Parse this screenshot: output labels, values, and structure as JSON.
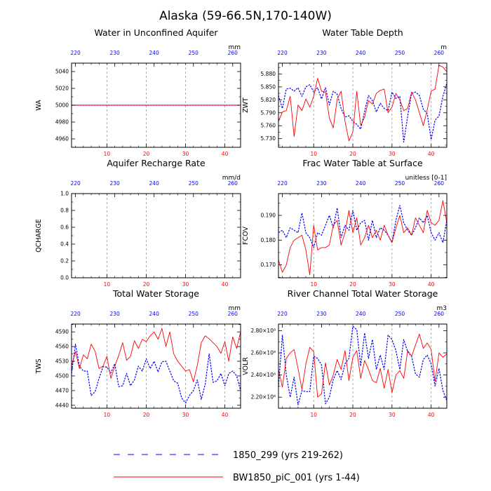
{
  "figure_title": "Alaska (59-66.5N,170-140W)",
  "legend": [
    {
      "label": "1850_299 (yrs 219-262)",
      "color": "#0000ff",
      "style": "dashed"
    },
    {
      "label": "BW1850_piC_001 (yrs 1-44)",
      "color": "#ff0000",
      "style": "solid"
    }
  ],
  "colors": {
    "blue": "#0000ff",
    "red": "#ff0000",
    "grid": "#999999"
  },
  "chart_data": [
    {
      "type": "line",
      "title": "Water in Unconfined Aquifer",
      "ylabel": "WA",
      "units": "mm",
      "xlim_bottom": [
        1,
        44
      ],
      "xticks_bottom": [
        10,
        20,
        30,
        40
      ],
      "xlim_top": [
        219,
        262
      ],
      "xticks_top": [
        220,
        230,
        240,
        250,
        260
      ],
      "ylim": [
        4950,
        5050
      ],
      "yticks": [
        4960,
        4980,
        5000,
        5020,
        5040
      ],
      "ytick_labels": [
        "4960",
        "4980",
        "5000",
        "5020",
        "5040"
      ],
      "series": [
        {
          "name": "1850_299 (yrs 219-262)",
          "values": [
            5000,
            5000,
            5000,
            5000,
            5000,
            5000,
            5000,
            5000,
            5000,
            5000,
            5000,
            5000,
            5000,
            5000,
            5000,
            5000,
            5000,
            5000,
            5000,
            5000,
            5000,
            5000,
            5000,
            5000,
            5000,
            5000,
            5000,
            5000,
            5000,
            5000,
            5000,
            5000,
            5000,
            5000,
            5000,
            5000,
            5000,
            5000,
            5000,
            5000,
            5000,
            5000,
            5000,
            5000
          ]
        },
        {
          "name": "BW1850_piC_001 (yrs 1-44)",
          "values": [
            5000,
            5000,
            5000,
            5000,
            5000,
            5000,
            5000,
            5000,
            5000,
            5000,
            5000,
            5000,
            5000,
            5000,
            5000,
            5000,
            5000,
            5000,
            5000,
            5000,
            5000,
            5000,
            5000,
            5000,
            5000,
            5000,
            5000,
            5000,
            5000,
            5000,
            5000,
            5000,
            5000,
            5000,
            5000,
            5000,
            5000,
            5000,
            5000,
            5000,
            5000,
            5000,
            5000,
            5000
          ]
        }
      ]
    },
    {
      "type": "line",
      "title": "Water Table Depth",
      "ylabel": "ZWT",
      "units": "m",
      "xlim_bottom": [
        1,
        44
      ],
      "xticks_bottom": [
        10,
        20,
        30,
        40
      ],
      "xlim_top": [
        219,
        262
      ],
      "xticks_top": [
        220,
        230,
        240,
        250,
        260
      ],
      "ylim": [
        5.71,
        5.905
      ],
      "yticks": [
        5.73,
        5.76,
        5.79,
        5.82,
        5.85,
        5.88
      ],
      "ytick_labels": [
        "5.730",
        "5.760",
        "5.790",
        "5.820",
        "5.850",
        "5.880"
      ],
      "series": [
        {
          "name": "1850_299 (yrs 219-262)",
          "values": [
            5.83,
            5.8,
            5.845,
            5.847,
            5.84,
            5.848,
            5.828,
            5.85,
            5.855,
            5.838,
            5.848,
            5.822,
            5.848,
            5.808,
            5.84,
            5.833,
            5.8,
            5.78,
            5.783,
            5.77,
            5.763,
            5.752,
            5.793,
            5.83,
            5.818,
            5.792,
            5.812,
            5.8,
            5.795,
            5.838,
            5.823,
            5.828,
            5.722,
            5.782,
            5.835,
            5.838,
            5.83,
            5.798,
            5.788,
            5.728,
            5.773,
            5.782,
            5.828,
            5.858
          ]
        },
        {
          "name": "BW1850_piC_001 (yrs 1-44)",
          "values": [
            5.77,
            5.792,
            5.795,
            5.828,
            5.735,
            5.808,
            5.795,
            5.822,
            5.803,
            5.828,
            5.87,
            5.84,
            5.838,
            5.778,
            5.755,
            5.822,
            5.84,
            5.77,
            5.725,
            5.745,
            5.84,
            5.76,
            5.78,
            5.818,
            5.81,
            5.835,
            5.842,
            5.845,
            5.79,
            5.803,
            5.835,
            5.82,
            5.795,
            5.8,
            5.838,
            5.82,
            5.79,
            5.76,
            5.797,
            5.84,
            5.845,
            5.9,
            5.896,
            5.885
          ]
        }
      ]
    },
    {
      "type": "line",
      "title": "Aquifer Recharge Rate",
      "ylabel": "QCHARGE",
      "units": "mm/d",
      "xlim_bottom": [
        1,
        44
      ],
      "xticks_bottom": [
        10,
        20,
        30,
        40
      ],
      "xlim_top": [
        219,
        262
      ],
      "xticks_top": [
        220,
        230,
        240,
        250,
        260
      ],
      "ylim": [
        0,
        1
      ],
      "yticks": [
        0,
        0.2,
        0.4,
        0.6,
        0.8,
        1.0
      ],
      "ytick_labels": [
        "0.0",
        "0.2",
        "0.4",
        "0.6",
        "0.8",
        "1.0"
      ],
      "series": []
    },
    {
      "type": "line",
      "title": "Frac Water Table at Surface",
      "ylabel": "FCOV",
      "units": "unitless [0-1]",
      "xlim_bottom": [
        1,
        44
      ],
      "xticks_bottom": [
        10,
        20,
        30,
        40
      ],
      "xlim_top": [
        219,
        262
      ],
      "xticks_top": [
        220,
        230,
        240,
        250,
        260
      ],
      "ylim": [
        0.1648,
        0.1988
      ],
      "yticks": [
        0.17,
        0.18,
        0.19
      ],
      "ytick_labels": [
        "0.170",
        "0.180",
        "0.190"
      ],
      "series": [
        {
          "name": "1850_299 (yrs 219-262)",
          "values": [
            0.183,
            0.184,
            0.181,
            0.185,
            0.184,
            0.183,
            0.191,
            0.183,
            0.181,
            0.177,
            0.183,
            0.182,
            0.186,
            0.19,
            0.185,
            0.193,
            0.181,
            0.186,
            0.184,
            0.192,
            0.184,
            0.187,
            0.188,
            0.18,
            0.188,
            0.181,
            0.185,
            0.184,
            0.182,
            0.179,
            0.188,
            0.194,
            0.187,
            0.184,
            0.182,
            0.185,
            0.189,
            0.187,
            0.19,
            0.183,
            0.18,
            0.183,
            0.179,
            0.188
          ]
        },
        {
          "name": "BW1850_piC_001 (yrs 1-44)",
          "values": [
            0.172,
            0.167,
            0.17,
            0.177,
            0.18,
            0.181,
            0.182,
            0.176,
            0.166,
            0.186,
            0.176,
            0.177,
            0.177,
            0.178,
            0.186,
            0.188,
            0.178,
            0.183,
            0.192,
            0.183,
            0.189,
            0.178,
            0.181,
            0.186,
            0.181,
            0.184,
            0.18,
            0.186,
            0.182,
            0.179,
            0.185,
            0.19,
            0.183,
            0.185,
            0.182,
            0.189,
            0.186,
            0.183,
            0.192,
            0.187,
            0.186,
            0.188,
            0.196,
            0.187
          ]
        }
      ]
    },
    {
      "type": "line",
      "title": "Total Water Storage",
      "ylabel": "TWS",
      "units": "mm",
      "xlim_bottom": [
        1,
        44
      ],
      "xticks_bottom": [
        10,
        20,
        30,
        40
      ],
      "xlim_top": [
        219,
        262
      ],
      "xticks_top": [
        220,
        230,
        240,
        250,
        260
      ],
      "ylim": [
        4434,
        4606
      ],
      "yticks": [
        4440,
        4470,
        4500,
        4530,
        4560,
        4590
      ],
      "ytick_labels": [
        "4440",
        "4470",
        "4500",
        "4530",
        "4560",
        "4590"
      ],
      "series": [
        {
          "name": "1850_299 (yrs 219-262)",
          "values": [
            4505,
            4565,
            4520,
            4510,
            4510,
            4460,
            4468,
            4495,
            4519,
            4518,
            4506,
            4525,
            4478,
            4480,
            4505,
            4480,
            4492,
            4520,
            4510,
            4535,
            4515,
            4530,
            4508,
            4529,
            4530,
            4510,
            4490,
            4485,
            4455,
            4445,
            4460,
            4470,
            4492,
            4452,
            4483,
            4545,
            4487,
            4490,
            4505,
            4480,
            4505,
            4510,
            4500,
            4470
          ]
        },
        {
          "name": "BW1850_piC_001 (yrs 1-44)",
          "values": [
            4520,
            4550,
            4515,
            4543,
            4535,
            4565,
            4550,
            4515,
            4520,
            4540,
            4495,
            4520,
            4542,
            4568,
            4532,
            4540,
            4572,
            4556,
            4575,
            4570,
            4582,
            4590,
            4575,
            4597,
            4560,
            4590,
            4545,
            4530,
            4520,
            4510,
            4513,
            4488,
            4522,
            4568,
            4582,
            4576,
            4568,
            4560,
            4546,
            4570,
            4530,
            4580,
            4556,
            4590
          ]
        }
      ]
    },
    {
      "type": "line",
      "title": "River Channel Total Water Storage",
      "ylabel": "VOLR",
      "units": "m3",
      "xlim_bottom": [
        1,
        44
      ],
      "xticks_bottom": [
        10,
        20,
        30,
        40
      ],
      "xlim_top": [
        219,
        262
      ],
      "xticks_top": [
        220,
        230,
        240,
        250,
        260
      ],
      "ylim": [
        210000000.0,
        286000000.0
      ],
      "yticks": [
        220000000.0,
        240000000.0,
        260000000.0,
        280000000.0
      ],
      "ytick_labels": [
        "2.20×10⁸",
        "2.40×10⁸",
        "2.60×10⁸",
        "2.80×10⁸"
      ],
      "series": [
        {
          "name": "1850_299 (yrs 219-262)",
          "values": [
            229000000.0,
            276000000.0,
            240000000.0,
            220000000.0,
            238000000.0,
            213000000.0,
            226000000.0,
            225000000.0,
            225000000.0,
            257000000.0,
            255000000.0,
            249000000.0,
            214000000.0,
            220000000.0,
            236000000.0,
            244000000.0,
            236000000.0,
            250000000.0,
            255000000.0,
            284000000.0,
            281000000.0,
            248000000.0,
            278000000.0,
            255000000.0,
            272000000.0,
            245000000.0,
            258000000.0,
            245000000.0,
            276000000.0,
            272000000.0,
            262000000.0,
            245000000.0,
            272000000.0,
            261000000.0,
            257000000.0,
            241000000.0,
            238000000.0,
            254000000.0,
            258000000.0,
            250000000.0,
            230000000.0,
            246000000.0,
            226000000.0,
            217000000.0
          ]
        },
        {
          "name": "BW1850_piC_001 (yrs 1-44)",
          "values": [
            245000000.0,
            229000000.0,
            255000000.0,
            260000000.0,
            263000000.0,
            246000000.0,
            227000000.0,
            250000000.0,
            265000000.0,
            261000000.0,
            220000000.0,
            223000000.0,
            251000000.0,
            231000000.0,
            240000000.0,
            254000000.0,
            245000000.0,
            262000000.0,
            235000000.0,
            256000000.0,
            262000000.0,
            237000000.0,
            253000000.0,
            245000000.0,
            235000000.0,
            233000000.0,
            246000000.0,
            228000000.0,
            245000000.0,
            224000000.0,
            240000000.0,
            244000000.0,
            237000000.0,
            262000000.0,
            257000000.0,
            267000000.0,
            277000000.0,
            264000000.0,
            269000000.0,
            263000000.0,
            234000000.0,
            260000000.0,
            256000000.0,
            259000000.0
          ]
        }
      ]
    }
  ]
}
